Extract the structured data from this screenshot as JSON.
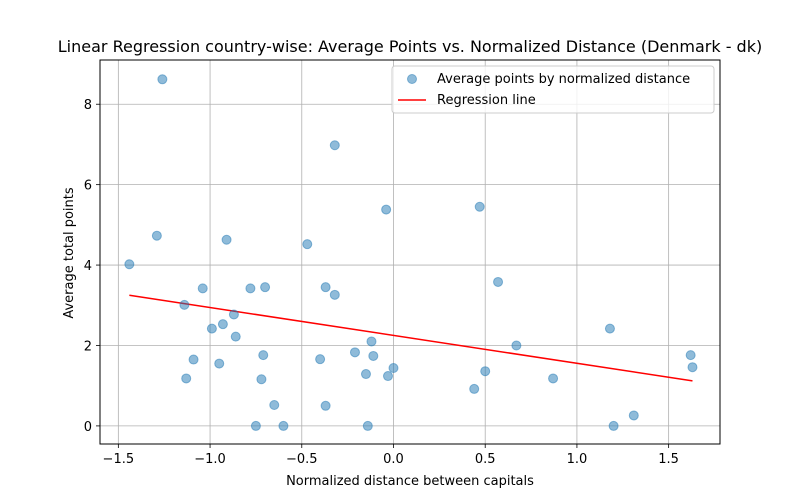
{
  "chart_data": {
    "type": "scatter",
    "title": "Linear Regression country-wise: Average Points vs. Normalized Distance (Denmark - dk)",
    "xlabel": "Normalized distance between capitals",
    "ylabel": "Average total points",
    "xlim": [
      -1.6,
      1.78
    ],
    "ylim": [
      -0.45,
      9.1
    ],
    "xticks": [
      -1.5,
      -1.0,
      -0.5,
      0.0,
      0.5,
      1.0,
      1.5
    ],
    "xtick_labels": [
      "−1.5",
      "−1.0",
      "−0.5",
      "0.0",
      "0.5",
      "1.0",
      "1.5"
    ],
    "yticks": [
      0,
      2,
      4,
      6,
      8
    ],
    "ytick_labels": [
      "0",
      "2",
      "4",
      "6",
      "8"
    ],
    "grid": true,
    "legend_position": "top-right",
    "series": [
      {
        "name": "Average points by normalized distance",
        "kind": "scatter",
        "color": "#1f77b4",
        "points": [
          [
            -1.44,
            4.02
          ],
          [
            -1.29,
            4.73
          ],
          [
            -1.26,
            8.62
          ],
          [
            -1.14,
            3.01
          ],
          [
            -1.13,
            1.18
          ],
          [
            -1.09,
            1.65
          ],
          [
            -1.04,
            3.42
          ],
          [
            -0.99,
            2.42
          ],
          [
            -0.95,
            1.55
          ],
          [
            -0.93,
            2.53
          ],
          [
            -0.91,
            4.63
          ],
          [
            -0.87,
            2.77
          ],
          [
            -0.86,
            2.22
          ],
          [
            -0.78,
            3.42
          ],
          [
            -0.75,
            0.0
          ],
          [
            -0.72,
            1.16
          ],
          [
            -0.71,
            1.76
          ],
          [
            -0.7,
            3.45
          ],
          [
            -0.65,
            0.52
          ],
          [
            -0.6,
            0.0
          ],
          [
            -0.47,
            4.52
          ],
          [
            -0.4,
            1.66
          ],
          [
            -0.37,
            3.45
          ],
          [
            -0.37,
            0.5
          ],
          [
            -0.32,
            6.98
          ],
          [
            -0.32,
            3.26
          ],
          [
            -0.21,
            1.83
          ],
          [
            -0.15,
            1.29
          ],
          [
            -0.14,
            0.0
          ],
          [
            -0.12,
            2.1
          ],
          [
            -0.11,
            1.74
          ],
          [
            -0.04,
            5.38
          ],
          [
            -0.03,
            1.24
          ],
          [
            0.0,
            1.44
          ],
          [
            0.44,
            0.92
          ],
          [
            0.47,
            5.45
          ],
          [
            0.5,
            1.36
          ],
          [
            0.57,
            3.58
          ],
          [
            0.67,
            2.0
          ],
          [
            0.87,
            1.18
          ],
          [
            1.18,
            2.42
          ],
          [
            1.2,
            0.0
          ],
          [
            1.31,
            0.26
          ],
          [
            1.62,
            1.76
          ],
          [
            1.63,
            1.46
          ]
        ]
      },
      {
        "name": "Regression line",
        "kind": "line",
        "color": "#ff0000",
        "points": [
          [
            -1.44,
            3.25
          ],
          [
            1.63,
            1.12
          ]
        ]
      }
    ]
  }
}
